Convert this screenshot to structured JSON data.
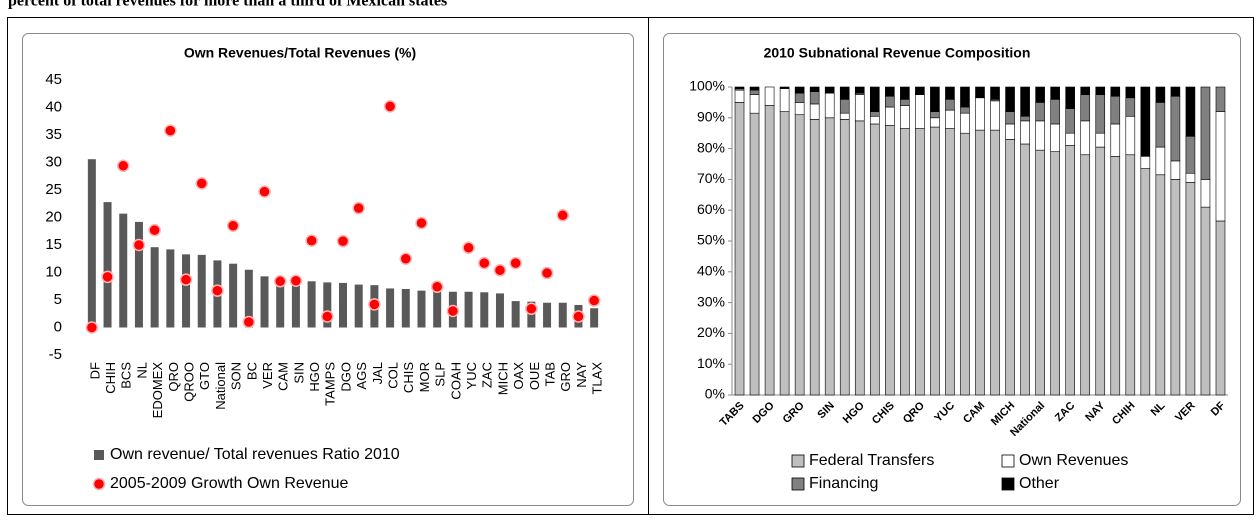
{
  "text": "percent of total revenues for more than a third of Mexican states",
  "chart_data": [
    {
      "type": "combo",
      "title": "Own Revenues/Total Revenues (%)",
      "categories": [
        "DF",
        "CHIH",
        "BCS",
        "NL",
        "EDOMEX",
        "QRO",
        "QROO",
        "GTO",
        "National",
        "SON",
        "BC",
        "VER",
        "CAM",
        "SIN",
        "HGO",
        "TAMPS",
        "DGO",
        "AGS",
        "JAL",
        "COL",
        "CHIS",
        "MOR",
        "SLP",
        "COAH",
        "YUC",
        "ZAC",
        "MICH",
        "OAX",
        "OUE",
        "TAB",
        "GRO",
        "NAY",
        "TLAX"
      ],
      "series": [
        {
          "name": "Own revenue/ Total revenues Ratio 2010",
          "type": "bar",
          "color": "#595959",
          "values": [
            30.6,
            22.8,
            20.7,
            19.2,
            14.6,
            14.2,
            13.3,
            13.2,
            12.2,
            11.6,
            10.5,
            9.3,
            8.7,
            8.6,
            8.4,
            8.2,
            8.1,
            7.8,
            7.7,
            7.1,
            7.0,
            6.7,
            6.6,
            6.5,
            6.5,
            6.4,
            6.2,
            4.8,
            4.7,
            4.5,
            4.5,
            4.1,
            3.5
          ]
        },
        {
          "name": "2005-2009  Growth Own Revenue",
          "type": "scatter",
          "color": "#ff0000",
          "values": [
            0,
            9.2,
            29.4,
            15,
            17.7,
            35.8,
            8.7,
            26.2,
            6.7,
            18.5,
            1,
            24.7,
            8.4,
            8.5,
            15.8,
            2,
            15.7,
            21.7,
            4.2,
            40.2,
            12.5,
            19,
            7.4,
            3,
            14.5,
            11.7,
            10.4,
            11.7,
            3.4,
            9.9,
            20.4,
            2,
            4.9
          ]
        }
      ],
      "ylim": [
        -5,
        45
      ],
      "yticks": [
        -5,
        0,
        5,
        10,
        15,
        20,
        25,
        30,
        35,
        40,
        45
      ],
      "grid": false
    },
    {
      "type": "stacked_bar",
      "title": "2010 Subnational Revenue Composition",
      "categories": [
        "TABS",
        null,
        "DGO",
        null,
        "GRO",
        null,
        "SIN",
        null,
        "HGO",
        null,
        "CHIS",
        null,
        "QRO",
        null,
        "YUC",
        null,
        "CAM",
        null,
        "MICH",
        null,
        "National",
        null,
        "ZAC",
        null,
        "NAY",
        null,
        "CHIH",
        null,
        "NL",
        null,
        "VER",
        null,
        "DF"
      ],
      "series": [
        {
          "name": "Federal Transfers",
          "color": "#bfbfbf",
          "values": [
            95,
            91.5,
            94,
            92,
            91,
            89.5,
            90,
            89.5,
            89,
            88,
            87.5,
            86.5,
            86.5,
            87,
            86.5,
            85,
            86,
            86,
            83,
            81.5,
            79.5,
            79,
            81,
            78,
            80.5,
            77.5,
            78,
            73.5,
            71.5,
            70,
            69,
            61,
            56.5
          ]
        },
        {
          "name": "Own Revenues",
          "color": "#ffffff",
          "values": [
            4,
            6,
            6,
            7.5,
            4,
            5,
            8,
            2,
            8.5,
            2.5,
            6,
            7.5,
            11,
            3,
            6,
            6.5,
            10.5,
            9.5,
            5,
            7.5,
            9.5,
            9,
            4,
            11,
            4.5,
            10.5,
            12.5,
            4,
            9,
            6,
            3,
            9,
            35.5
          ]
        },
        {
          "name": "Financing",
          "color": "#808080",
          "values": [
            0.5,
            1.5,
            0,
            0,
            3,
            4,
            0,
            4.5,
            0.5,
            1.5,
            3.5,
            2,
            0,
            2,
            3.5,
            2,
            0,
            0.5,
            4,
            1.5,
            6,
            8,
            8,
            8.5,
            12.5,
            9,
            6,
            0,
            14.5,
            21,
            12,
            30,
            8
          ]
        },
        {
          "name": "Other",
          "color": "#000000",
          "values": [
            0.5,
            1,
            0,
            0.5,
            2,
            1.5,
            2,
            4,
            2,
            8,
            3,
            4,
            2.5,
            8,
            4,
            6.5,
            3.5,
            4,
            8,
            9.5,
            5,
            4,
            7,
            2.5,
            2.5,
            3,
            3.5,
            22.5,
            5,
            3,
            16,
            0,
            0
          ]
        }
      ],
      "ylim": [
        0,
        100
      ],
      "yticks": [
        {
          "value": 0,
          "label": "0%"
        },
        {
          "value": 10,
          "label": "10%"
        },
        {
          "value": 20,
          "label": "20%"
        },
        {
          "value": 30,
          "label": "30%"
        },
        {
          "value": 40,
          "label": "40%"
        },
        {
          "value": 50,
          "label": "50%"
        },
        {
          "value": 60,
          "label": "60%"
        },
        {
          "value": 70,
          "label": "70%"
        },
        {
          "value": 80,
          "label": "80%"
        },
        {
          "value": 90,
          "label": "90%"
        },
        {
          "value": 100,
          "label": "100%"
        }
      ],
      "grid": false
    }
  ]
}
